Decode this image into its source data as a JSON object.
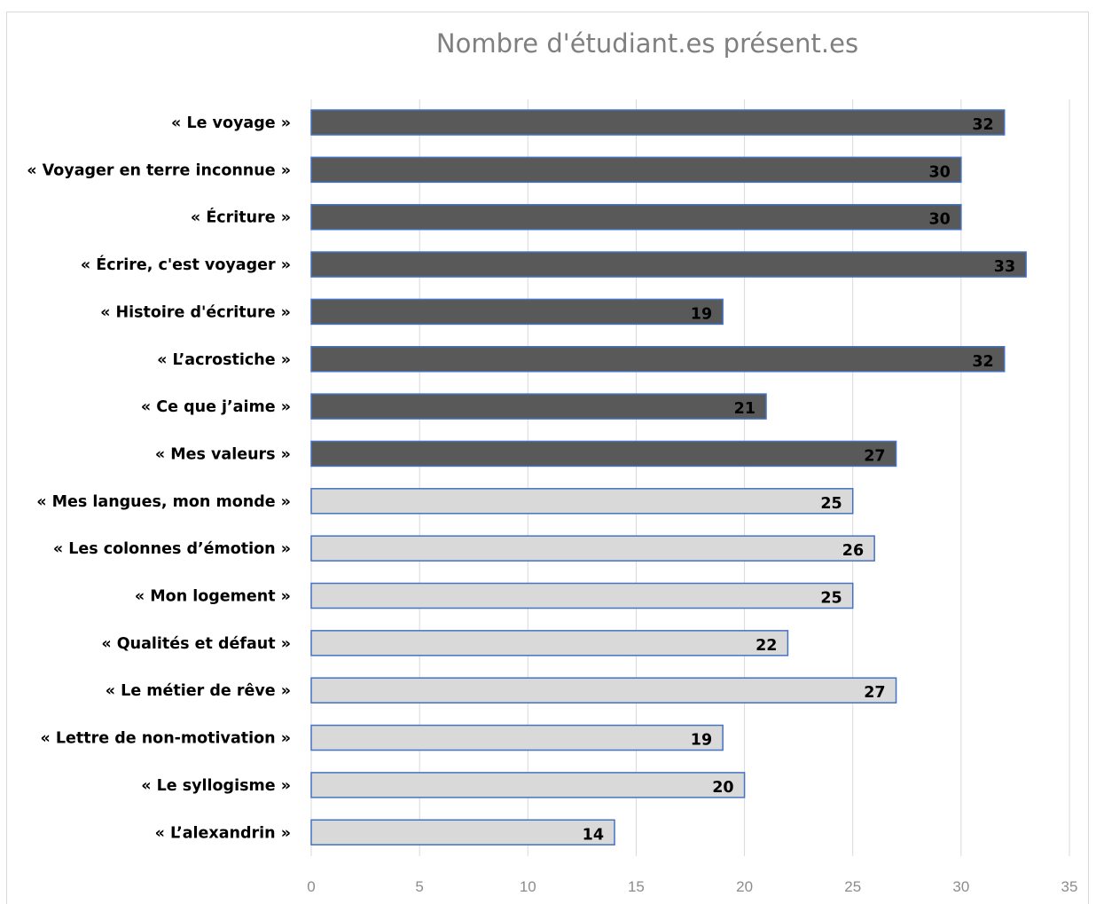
{
  "chart_data": {
    "type": "bar",
    "orientation": "horizontal",
    "title": "Nombre d'étudiant.es présent.es",
    "xlabel": "",
    "ylabel": "",
    "xlim": [
      0,
      35
    ],
    "x_ticks": [
      "0",
      "5",
      "10",
      "15",
      "20",
      "25",
      "30",
      "35"
    ],
    "grid": "vertical",
    "legend": "none",
    "categories": [
      "« Le voyage »",
      "« Voyager en terre inconnue »",
      "« Écriture »",
      "« Écrire, c'est voyager »",
      "« Histoire d'écriture »",
      "« L’acrostiche »",
      "« Ce que j’aime »",
      "« Mes valeurs »",
      "« Mes langues, mon monde »",
      "« Les colonnes d’émotion »",
      "« Mon logement »",
      "« Qualités et défaut »",
      "« Le métier de rêve »",
      "« Lettre de non-motivation »",
      "« Le syllogisme »",
      "« L’alexandrin »"
    ],
    "values": [
      32,
      30,
      30,
      33,
      19,
      32,
      21,
      27,
      25,
      26,
      25,
      22,
      27,
      19,
      20,
      14
    ],
    "data_labels": [
      "32",
      "30",
      "30",
      "33",
      "19",
      "32",
      "21",
      "27",
      "25",
      "26",
      "25",
      "22",
      "27",
      "19",
      "20",
      "14"
    ],
    "bar_fill": [
      "dark",
      "dark",
      "dark",
      "dark",
      "dark",
      "dark",
      "dark",
      "dark",
      "light",
      "light",
      "light",
      "light",
      "light",
      "light",
      "light",
      "light"
    ]
  },
  "colors": {
    "dark_fill": "#595959",
    "light_fill": "#d9d9d9",
    "bar_border": "#4472c4",
    "grid": "#d9d9d9",
    "title": "#7f7f7f",
    "ticks": "#8c8c8c"
  }
}
